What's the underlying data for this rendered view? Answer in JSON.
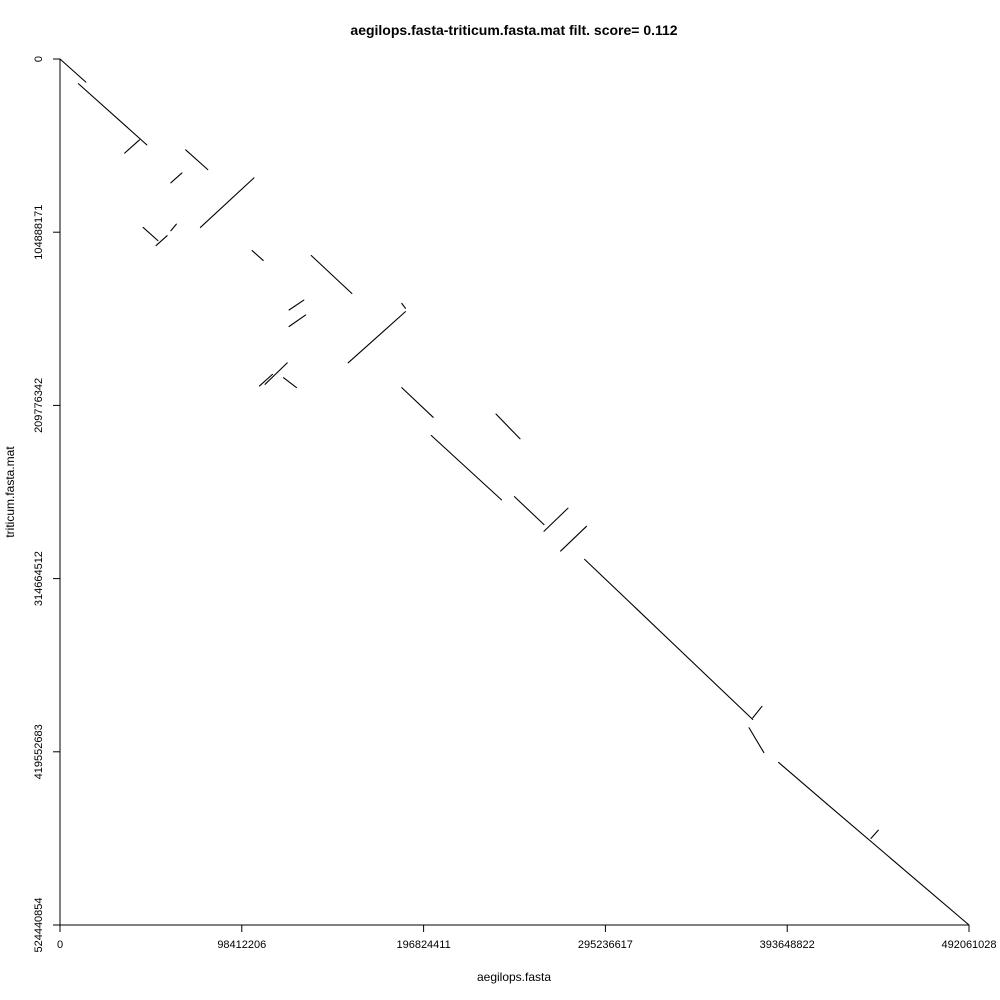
{
  "chart_data": {
    "type": "scatter",
    "title": "aegilops.fasta-triticum.fasta.mat filt. score= 0.112",
    "xlabel": "aegilops.fasta",
    "ylabel": "triticum.fasta.mat",
    "xlim": [
      0,
      492061028
    ],
    "ylim": [
      0,
      524440854
    ],
    "y_inverted": true,
    "grid": false,
    "legend": "none",
    "x_ticks": [
      0,
      98412206,
      196824411,
      295236617,
      393648822,
      492061028
    ],
    "x_tick_labels": [
      "0",
      "98412206",
      "196824411",
      "295236617",
      "393648822",
      "492061028"
    ],
    "y_ticks": [
      0,
      104888171,
      209776342,
      314664512,
      419552683,
      524440854
    ],
    "y_tick_labels": [
      "0",
      "104888171",
      "209776342",
      "314664512",
      "419552683",
      "524440854"
    ],
    "series": [
      {
        "segments": [
          [
            [
              0,
              0
            ],
            [
              14000000,
              14000000
            ]
          ],
          [
            [
              10000000,
              15000000
            ],
            [
              47000000,
              52000000
            ]
          ],
          [
            [
              35000000,
              57000000
            ],
            [
              43000000,
              49000000
            ]
          ],
          [
            [
              68000000,
              55000000
            ],
            [
              80000000,
              67000000
            ]
          ],
          [
            [
              60000000,
              75000000
            ],
            [
              66000000,
              69000000
            ]
          ],
          [
            [
              105000000,
              72000000
            ],
            [
              76000000,
              102000000
            ]
          ],
          [
            [
              45000000,
              102000000
            ],
            [
              53000000,
              110000000
            ]
          ],
          [
            [
              52000000,
              113000000
            ],
            [
              58000000,
              107000000
            ]
          ],
          [
            [
              60000000,
              104000000
            ],
            [
              63000000,
              100000000
            ]
          ],
          [
            [
              104000000,
              116000000
            ],
            [
              110000000,
              122000000
            ]
          ],
          [
            [
              136000000,
              119000000
            ],
            [
              158000000,
              142000000
            ]
          ],
          [
            [
              132000000,
              146000000
            ],
            [
              124000000,
              152000000
            ]
          ],
          [
            [
              133000000,
              155000000
            ],
            [
              124000000,
              162000000
            ]
          ],
          [
            [
              187000000,
              153000000
            ],
            [
              156000000,
              184000000
            ]
          ],
          [
            [
              185000000,
              148000000
            ],
            [
              187000000,
              151000000
            ]
          ],
          [
            [
              123000000,
              184000000
            ],
            [
              111000000,
              197000000
            ]
          ],
          [
            [
              108000000,
              198000000
            ],
            [
              115000000,
              191000000
            ]
          ],
          [
            [
              121000000,
              193000000
            ],
            [
              128000000,
              199000000
            ]
          ],
          [
            [
              185000000,
              199000000
            ],
            [
              202000000,
              217000000
            ]
          ],
          [
            [
              201000000,
              228000000
            ],
            [
              239000000,
              267000000
            ]
          ],
          [
            [
              236000000,
              215000000
            ],
            [
              249000000,
              230000000
            ]
          ],
          [
            [
              246000000,
              265000000
            ],
            [
              262000000,
              282000000
            ]
          ],
          [
            [
              262000000,
              286000000
            ],
            [
              275000000,
              272000000
            ]
          ],
          [
            [
              271000000,
              298000000
            ],
            [
              285000000,
              283000000
            ]
          ],
          [
            [
              284000000,
              303000000
            ],
            [
              375000000,
              400000000
            ]
          ],
          [
            [
              375000000,
              399000000
            ],
            [
              380000000,
              392000000
            ]
          ],
          [
            [
              373000000,
              405000000
            ],
            [
              381000000,
              420000000
            ]
          ],
          [
            [
              389000000,
              426000000
            ],
            [
              415000000,
              451000000
            ]
          ],
          [
            [
              439000000,
              472000000
            ],
            [
              443000000,
              467000000
            ]
          ],
          [
            [
              415000000,
              451000000
            ],
            [
              492061028,
              524440854
            ]
          ]
        ]
      }
    ]
  }
}
